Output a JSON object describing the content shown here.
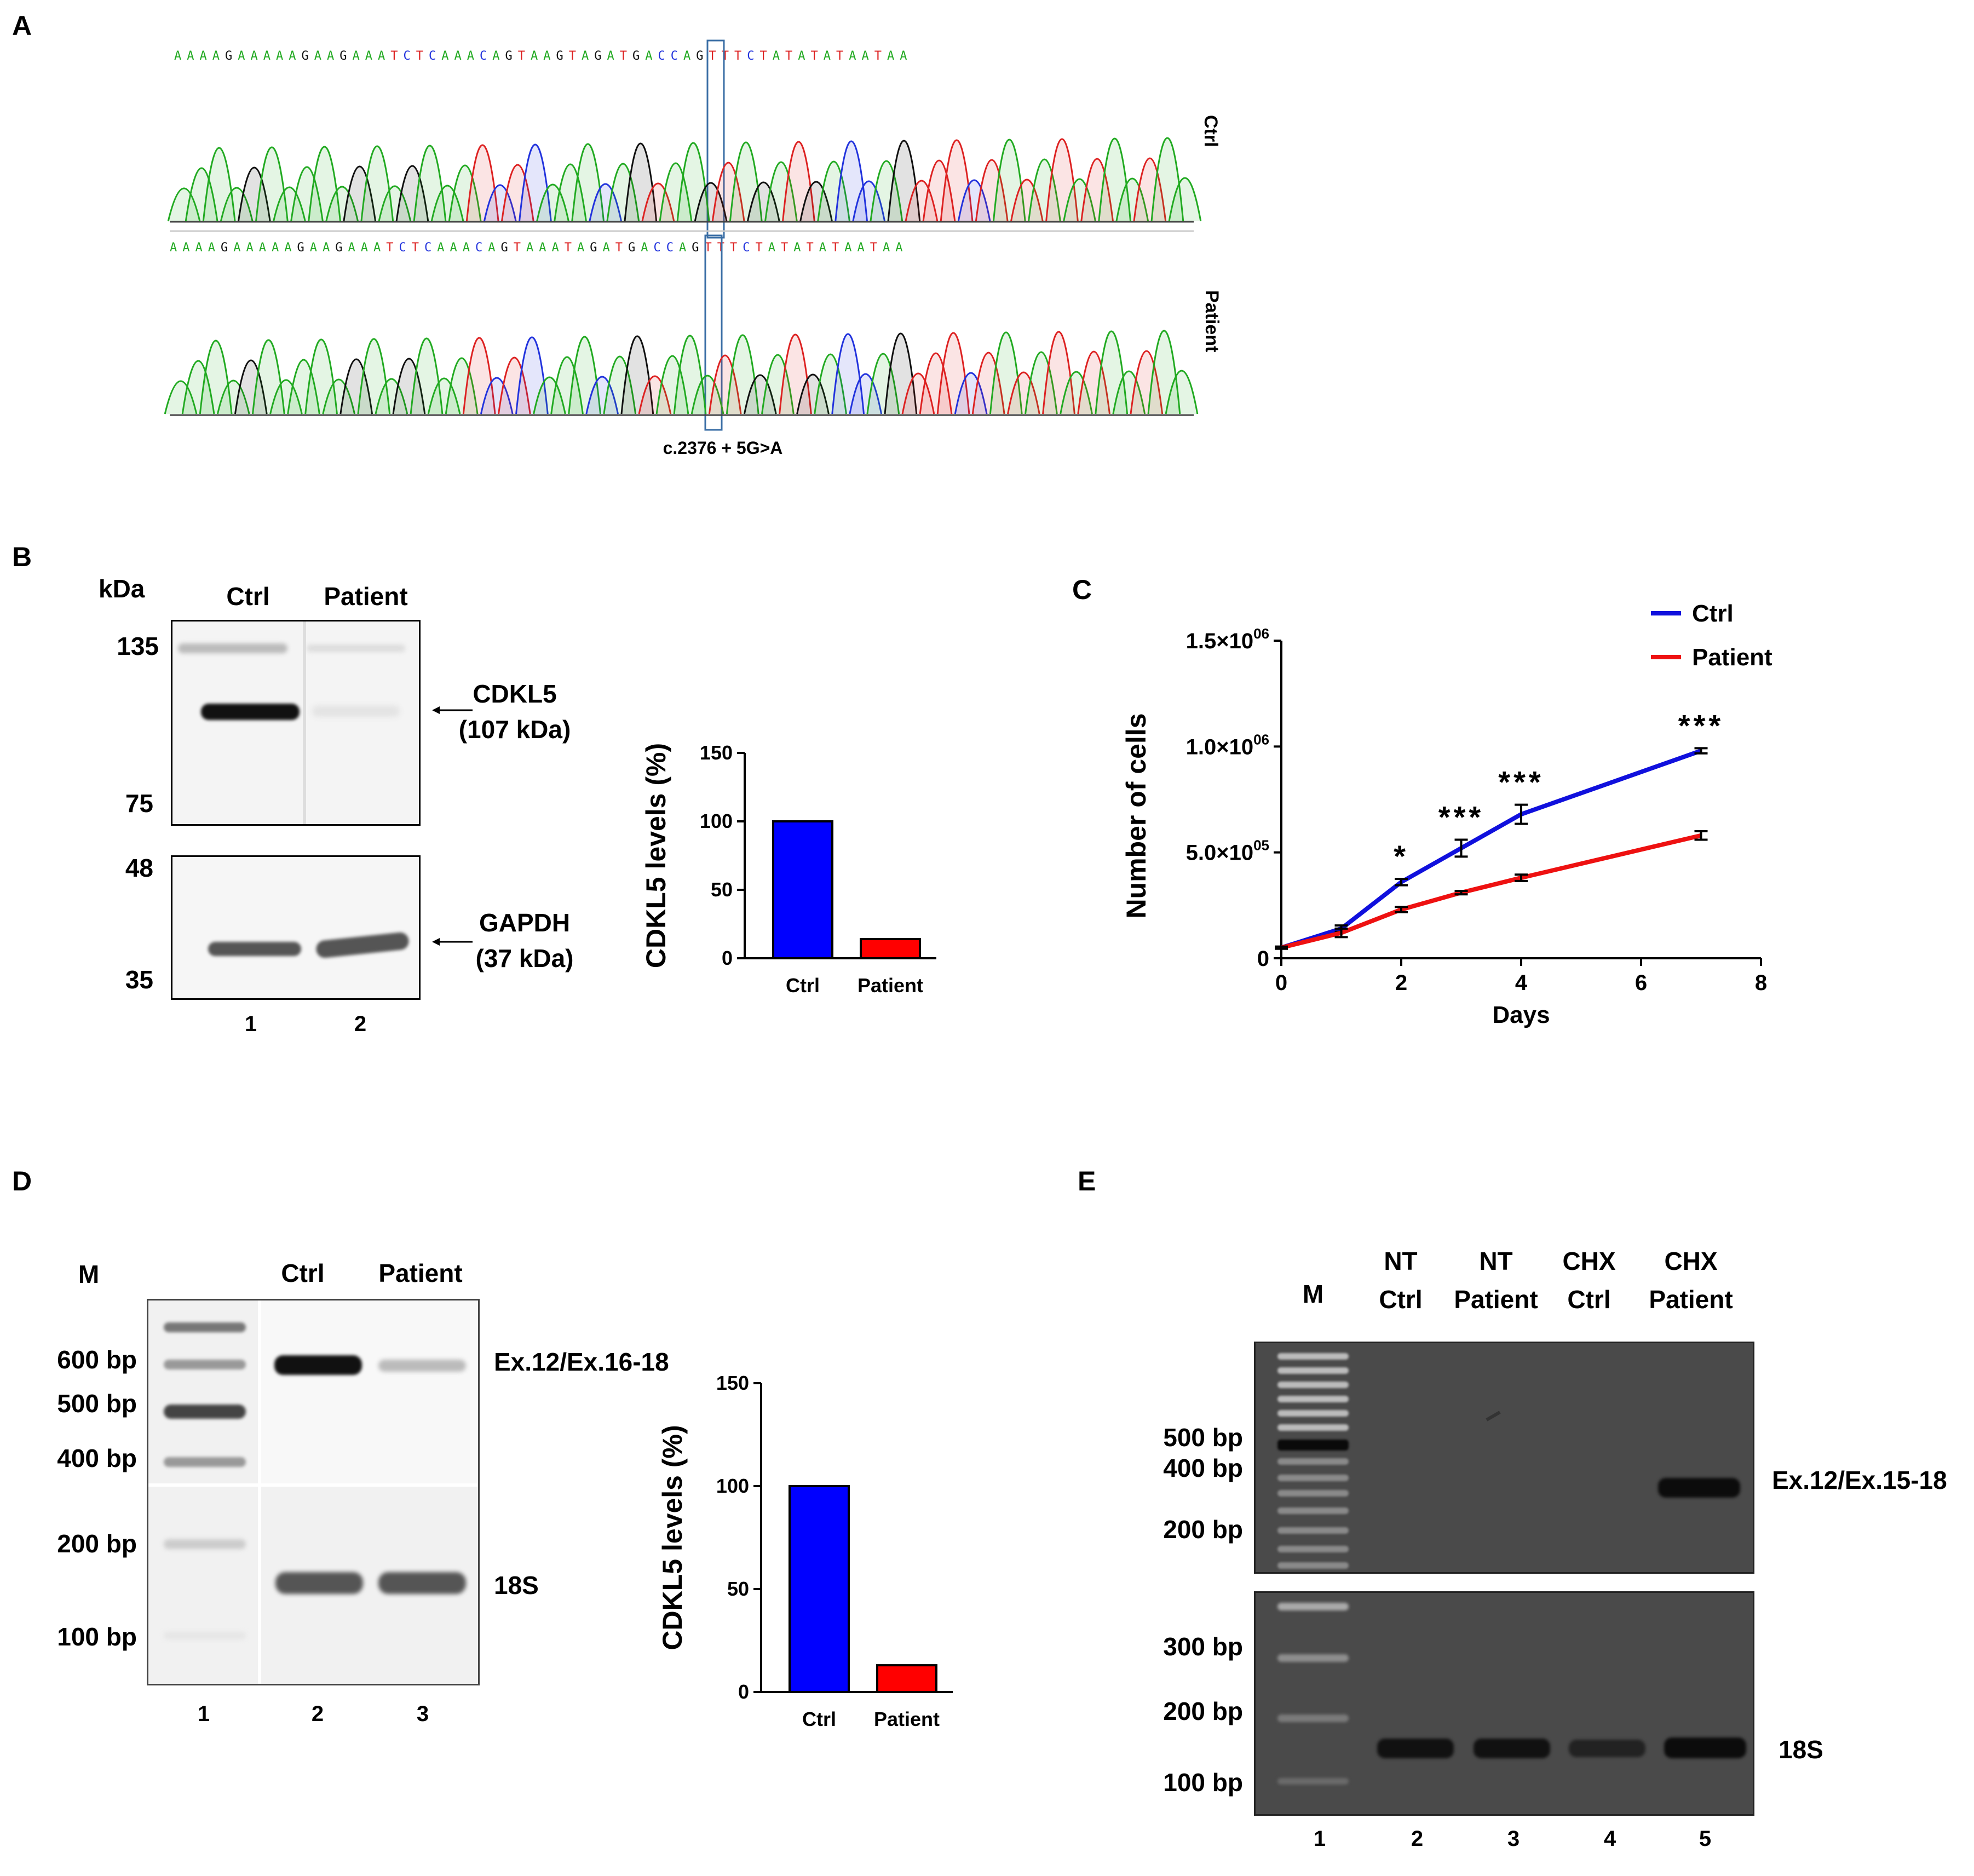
{
  "panels": {
    "A": "A",
    "B": "B",
    "C": "C",
    "D": "D",
    "E": "E"
  },
  "panel_a": {
    "sequence": "AAAAGAAAAAGAAGAAATCTCAAACAGTAAGTAGATGACCAGTTTCTATATATAATAA",
    "sequence_patient": "AAAAGAAAAAGAAGAAATCTCAAACAGTAAATAGATGACCAGTTTCTATATATAATAA",
    "row_ctrl": "Ctrl",
    "row_patient": "Patient",
    "mutation": "c.2376 + 5G>A",
    "base_colors": {
      "A": "#22aa22",
      "T": "#dd2222",
      "G": "#111111",
      "C": "#2233dd"
    }
  },
  "panel_b": {
    "kda_label": "kDa",
    "lanes_top": [
      "Ctrl",
      "Patient"
    ],
    "markers": [
      "135",
      "75",
      "48",
      "35"
    ],
    "band1_name": "CDKL5",
    "band1_size": "(107 kDa)",
    "band2_name": "GAPDH",
    "band2_size": "(37 kDa)",
    "lane_numbers": [
      "1",
      "2"
    ]
  },
  "panel_d": {
    "m_label": "M",
    "lanes_top": [
      "Ctrl",
      "Patient"
    ],
    "markers": [
      "600 bp",
      "500 bp",
      "400 bp",
      "200 bp",
      "100 bp"
    ],
    "band1": "Ex.12/Ex.16-18",
    "band2": "18S",
    "lane_numbers": [
      "1",
      "2",
      "3"
    ]
  },
  "panel_e": {
    "m_label": "M",
    "lanes_top": [
      [
        "NT",
        "Ctrl"
      ],
      [
        "NT",
        "Patient"
      ],
      [
        "CHX",
        "Ctrl"
      ],
      [
        "CHX",
        "Patient"
      ]
    ],
    "markers_top": [
      "500 bp",
      "400 bp",
      "200 bp"
    ],
    "markers_bottom": [
      "300 bp",
      "200 bp",
      "100 bp"
    ],
    "band1": "Ex.12/Ex.15-18",
    "band2": "18S",
    "lane_numbers": [
      "1",
      "2",
      "3",
      "4",
      "5"
    ]
  },
  "chart_data": [
    {
      "id": "B-bar",
      "type": "bar",
      "categories": [
        "Ctrl",
        "Patient"
      ],
      "values": [
        100,
        14
      ],
      "colors": [
        "#0000ff",
        "#ff0000"
      ],
      "ylabel": "CDKL5 levels (%)",
      "ylim": [
        0,
        150
      ],
      "yticks": [
        "0",
        "50",
        "100",
        "150"
      ]
    },
    {
      "id": "C-line",
      "type": "line",
      "xlabel": "Days",
      "ylabel": "Number of cells",
      "xlim": [
        0,
        8
      ],
      "ylim": [
        0,
        1500000
      ],
      "xticks": [
        "0",
        "2",
        "4",
        "6",
        "8"
      ],
      "yticks": [
        "0",
        "5.0×10",
        "1.0×10",
        "1.5×10"
      ],
      "ytick_exp": [
        "",
        "05",
        "06",
        "06"
      ],
      "series": [
        {
          "name": "Ctrl",
          "color": "#1010dd",
          "x": [
            0,
            1,
            2,
            3,
            4,
            7
          ],
          "y": [
            50000,
            140000,
            360000,
            520000,
            680000,
            980000
          ],
          "err": [
            5000,
            15000,
            15000,
            40000,
            45000,
            12000
          ]
        },
        {
          "name": "Patient",
          "color": "#ee1111",
          "x": [
            0,
            1,
            2,
            3,
            4,
            7
          ],
          "y": [
            50000,
            120000,
            230000,
            310000,
            380000,
            580000
          ],
          "err": [
            5000,
            20000,
            12000,
            8000,
            15000,
            20000
          ]
        }
      ],
      "significance": [
        {
          "day": 2,
          "label": "*"
        },
        {
          "day": 3,
          "label": "***"
        },
        {
          "day": 4,
          "label": "***"
        },
        {
          "day": 7,
          "label": "***"
        }
      ],
      "legend_position": "top-right"
    },
    {
      "id": "D-bar",
      "type": "bar",
      "categories": [
        "Ctrl",
        "Patient"
      ],
      "values": [
        100,
        13
      ],
      "colors": [
        "#0000ff",
        "#ff0000"
      ],
      "ylabel": "CDKL5 levels (%)",
      "ylim": [
        0,
        150
      ],
      "yticks": [
        "0",
        "50",
        "100",
        "150"
      ]
    }
  ]
}
